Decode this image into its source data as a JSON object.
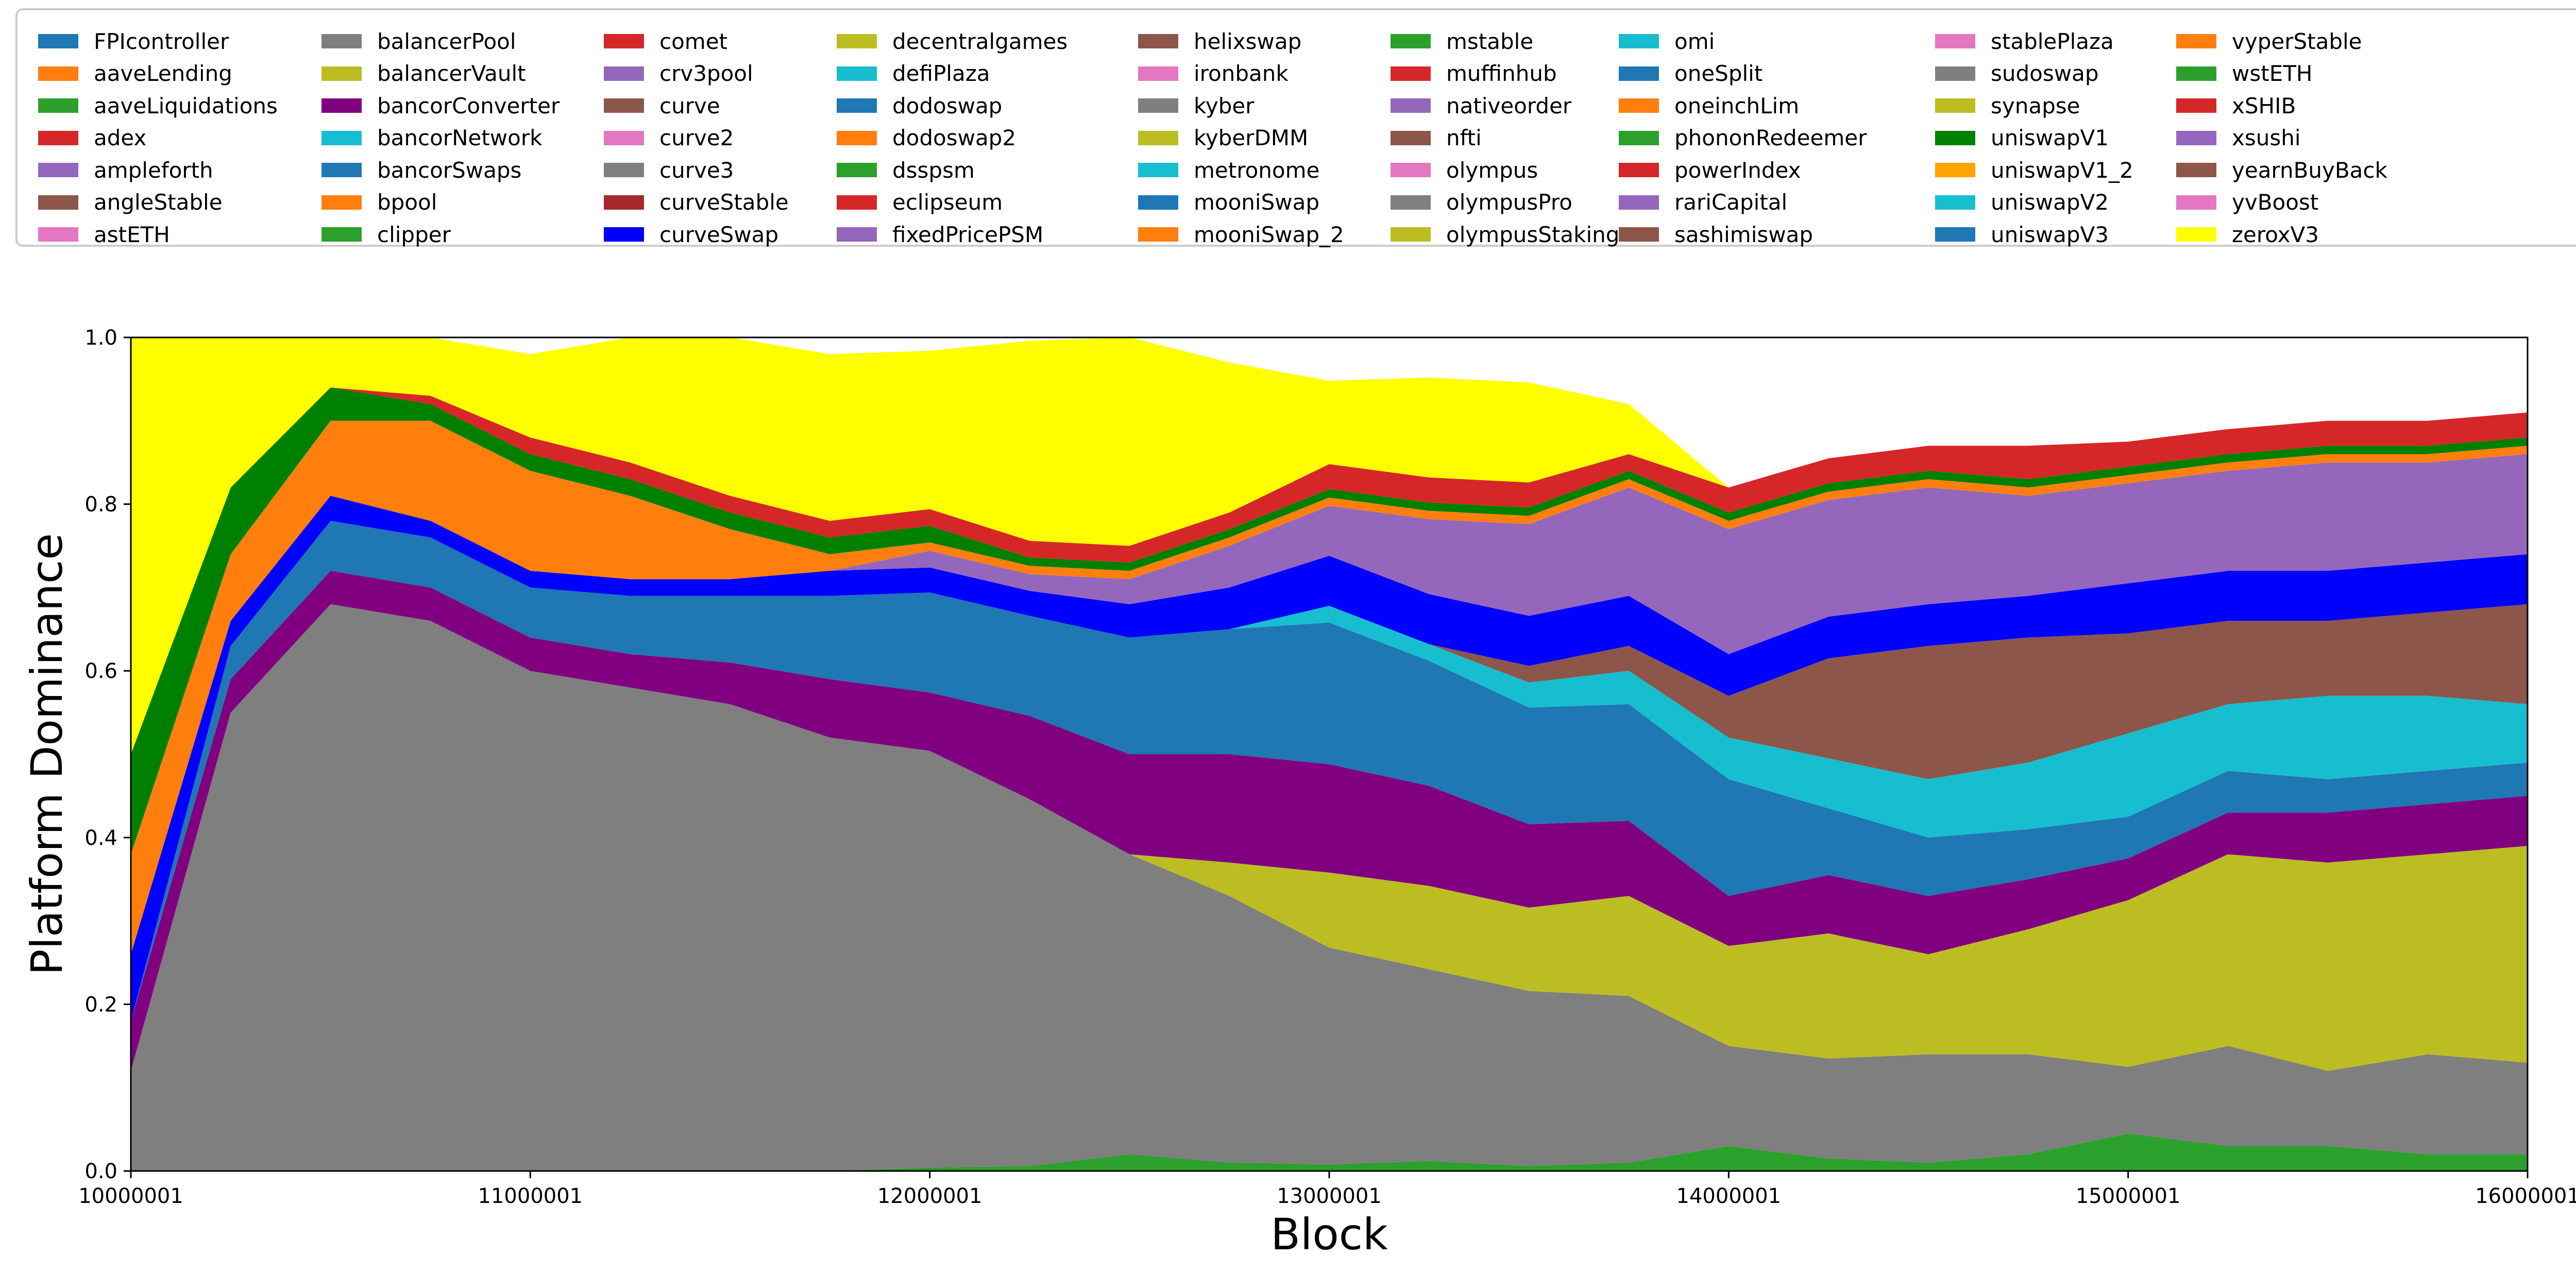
{
  "chart_data": {
    "type": "area",
    "title": "",
    "xlabel": "Block",
    "ylabel": "Platform Dominance",
    "xlim": [
      10000001,
      16000001
    ],
    "ylim": [
      0.0,
      1.0
    ],
    "xticks": [
      "10000001",
      "11000001",
      "12000001",
      "13000001",
      "14000001",
      "15000001",
      "16000001"
    ],
    "yticks": [
      "0.0",
      "0.2",
      "0.4",
      "0.6",
      "0.8",
      "1.0"
    ],
    "legend_position": "top",
    "legend": [
      {
        "name": "FPIcontroller",
        "color": "#1f77b4"
      },
      {
        "name": "aaveLending",
        "color": "#ff7f0e"
      },
      {
        "name": "aaveLiquidations",
        "color": "#2ca02c"
      },
      {
        "name": "adex",
        "color": "#d62728"
      },
      {
        "name": "ampleforth",
        "color": "#9467bd"
      },
      {
        "name": "angleStable",
        "color": "#8c564b"
      },
      {
        "name": "astETH",
        "color": "#e377c2"
      },
      {
        "name": "balancerPool",
        "color": "#7f7f7f"
      },
      {
        "name": "balancerVault",
        "color": "#bcbd22"
      },
      {
        "name": "bancorConverter",
        "color": "#800080"
      },
      {
        "name": "bancorNetwork",
        "color": "#17becf"
      },
      {
        "name": "bancorSwaps",
        "color": "#1f77b4"
      },
      {
        "name": "bpool",
        "color": "#ff7f0e"
      },
      {
        "name": "clipper",
        "color": "#2ca02c"
      },
      {
        "name": "comet",
        "color": "#d62728"
      },
      {
        "name": "crv3pool",
        "color": "#9467bd"
      },
      {
        "name": "curve",
        "color": "#8c564b"
      },
      {
        "name": "curve2",
        "color": "#e377c2"
      },
      {
        "name": "curve3",
        "color": "#7f7f7f"
      },
      {
        "name": "curveStable",
        "color": "#a52a2a"
      },
      {
        "name": "curveSwap",
        "color": "#0000ff"
      },
      {
        "name": "decentralgames",
        "color": "#bcbd22"
      },
      {
        "name": "defiPlaza",
        "color": "#17becf"
      },
      {
        "name": "dodoswap",
        "color": "#1f77b4"
      },
      {
        "name": "dodoswap2",
        "color": "#ff7f0e"
      },
      {
        "name": "dsspsm",
        "color": "#2ca02c"
      },
      {
        "name": "eclipseum",
        "color": "#d62728"
      },
      {
        "name": "fixedPricePSM",
        "color": "#9467bd"
      },
      {
        "name": "helixswap",
        "color": "#8c564b"
      },
      {
        "name": "ironbank",
        "color": "#e377c2"
      },
      {
        "name": "kyber",
        "color": "#7f7f7f"
      },
      {
        "name": "kyberDMM",
        "color": "#bcbd22"
      },
      {
        "name": "metronome",
        "color": "#17becf"
      },
      {
        "name": "mooniSwap",
        "color": "#1f77b4"
      },
      {
        "name": "mooniSwap_2",
        "color": "#ff7f0e"
      },
      {
        "name": "mstable",
        "color": "#2ca02c"
      },
      {
        "name": "muffinhub",
        "color": "#d62728"
      },
      {
        "name": "nativeorder",
        "color": "#9467bd"
      },
      {
        "name": "nfti",
        "color": "#8c564b"
      },
      {
        "name": "olympus",
        "color": "#e377c2"
      },
      {
        "name": "olympusPro",
        "color": "#7f7f7f"
      },
      {
        "name": "olympusStaking",
        "color": "#bcbd22"
      },
      {
        "name": "omi",
        "color": "#17becf"
      },
      {
        "name": "oneSplit",
        "color": "#1f77b4"
      },
      {
        "name": "oneinchLim",
        "color": "#ff7f0e"
      },
      {
        "name": "phononRedeemer",
        "color": "#2ca02c"
      },
      {
        "name": "powerIndex",
        "color": "#d62728"
      },
      {
        "name": "rariCapital",
        "color": "#9467bd"
      },
      {
        "name": "sashimiswap",
        "color": "#8c564b"
      },
      {
        "name": "stablePlaza",
        "color": "#e377c2"
      },
      {
        "name": "sudoswap",
        "color": "#7f7f7f"
      },
      {
        "name": "synapse",
        "color": "#bcbd22"
      },
      {
        "name": "uniswapV1",
        "color": "#008000"
      },
      {
        "name": "uniswapV1_2",
        "color": "#ffa500"
      },
      {
        "name": "uniswapV2",
        "color": "#17becf"
      },
      {
        "name": "uniswapV3",
        "color": "#1f77b4"
      },
      {
        "name": "vyperStable",
        "color": "#ff7f0e"
      },
      {
        "name": "wstETH",
        "color": "#2ca02c"
      },
      {
        "name": "xSHIB",
        "color": "#d62728"
      },
      {
        "name": "xsushi",
        "color": "#9467bd"
      },
      {
        "name": "yearnBuyBack",
        "color": "#8c564b"
      },
      {
        "name": "yvBoost",
        "color": "#e377c2"
      },
      {
        "name": "zeroxV3",
        "color": "#ffff00"
      }
    ],
    "x": [
      10000001,
      10250001,
      10500001,
      10750001,
      11000001,
      11250001,
      11500001,
      11750001,
      12000001,
      12250001,
      12500001,
      12750001,
      13000001,
      13250001,
      13500001,
      13750001,
      14000001,
      14250001,
      14500001,
      14750001,
      15000001,
      15250001,
      15500001,
      15750001,
      16000001
    ],
    "series": [
      {
        "name": "sudoswap+olympus+phononRedeemer",
        "color": "#2ca02c",
        "values": [
          0.0,
          0.0,
          0.0,
          0.0,
          0.0,
          0.0,
          0.0,
          0.0,
          0.004,
          0.006,
          0.02,
          0.01,
          0.008,
          0.012,
          0.006,
          0.01,
          0.03,
          0.015,
          0.01,
          0.02,
          0.045,
          0.03,
          0.03,
          0.02,
          0.02
        ]
      },
      {
        "name": "balancerPool",
        "color": "#7f7f7f",
        "values": [
          0.12,
          0.55,
          0.68,
          0.66,
          0.6,
          0.58,
          0.56,
          0.52,
          0.5,
          0.44,
          0.36,
          0.32,
          0.26,
          0.23,
          0.21,
          0.2,
          0.12,
          0.12,
          0.13,
          0.12,
          0.08,
          0.12,
          0.09,
          0.12,
          0.11
        ]
      },
      {
        "name": "kyberDMM",
        "color": "#bcbd22",
        "values": [
          0.0,
          0.0,
          0.0,
          0.0,
          0.0,
          0.0,
          0.0,
          0.0,
          0.0,
          0.0,
          0.0,
          0.04,
          0.09,
          0.1,
          0.1,
          0.12,
          0.12,
          0.15,
          0.12,
          0.15,
          0.2,
          0.23,
          0.25,
          0.24,
          0.26
        ]
      },
      {
        "name": "bancorConverter",
        "color": "#800080",
        "values": [
          0.06,
          0.04,
          0.04,
          0.04,
          0.04,
          0.04,
          0.05,
          0.07,
          0.07,
          0.1,
          0.12,
          0.13,
          0.13,
          0.12,
          0.1,
          0.09,
          0.06,
          0.07,
          0.07,
          0.06,
          0.05,
          0.05,
          0.06,
          0.06,
          0.06
        ]
      },
      {
        "name": "uniswapV3",
        "color": "#1f77b4",
        "values": [
          0.0,
          0.04,
          0.06,
          0.06,
          0.06,
          0.07,
          0.08,
          0.1,
          0.12,
          0.12,
          0.14,
          0.15,
          0.17,
          0.15,
          0.14,
          0.14,
          0.14,
          0.08,
          0.07,
          0.06,
          0.05,
          0.05,
          0.04,
          0.04,
          0.04
        ]
      },
      {
        "name": "uniswapV2",
        "color": "#17becf",
        "values": [
          0.0,
          0.0,
          0.0,
          0.0,
          0.0,
          0.0,
          0.0,
          0.0,
          0.0,
          0.0,
          0.0,
          0.0,
          0.02,
          0.02,
          0.03,
          0.04,
          0.05,
          0.06,
          0.07,
          0.08,
          0.1,
          0.08,
          0.1,
          0.09,
          0.07
        ]
      },
      {
        "name": "sashimiswap",
        "color": "#8c564b",
        "values": [
          0.0,
          0.0,
          0.0,
          0.0,
          0.0,
          0.0,
          0.0,
          0.0,
          0.0,
          0.0,
          0.0,
          0.0,
          0.0,
          0.0,
          0.02,
          0.03,
          0.05,
          0.12,
          0.16,
          0.15,
          0.12,
          0.1,
          0.09,
          0.1,
          0.12
        ]
      },
      {
        "name": "curveSwap",
        "color": "#0000ff",
        "values": [
          0.08,
          0.03,
          0.03,
          0.02,
          0.02,
          0.02,
          0.02,
          0.03,
          0.03,
          0.03,
          0.04,
          0.05,
          0.06,
          0.06,
          0.06,
          0.06,
          0.05,
          0.05,
          0.05,
          0.05,
          0.06,
          0.06,
          0.06,
          0.06,
          0.06
        ]
      },
      {
        "name": "rariCapital+nativeorder",
        "color": "#9467bd",
        "values": [
          0.0,
          0.0,
          0.0,
          0.0,
          0.0,
          0.0,
          0.0,
          0.0,
          0.02,
          0.02,
          0.03,
          0.05,
          0.06,
          0.09,
          0.11,
          0.13,
          0.15,
          0.14,
          0.14,
          0.12,
          0.12,
          0.12,
          0.13,
          0.12,
          0.12
        ]
      },
      {
        "name": "bpool+dodoswap2",
        "color": "#ff7f0e",
        "values": [
          0.12,
          0.08,
          0.09,
          0.12,
          0.12,
          0.1,
          0.06,
          0.02,
          0.01,
          0.01,
          0.01,
          0.01,
          0.01,
          0.01,
          0.01,
          0.01,
          0.01,
          0.01,
          0.01,
          0.01,
          0.01,
          0.01,
          0.01,
          0.01,
          0.01
        ]
      },
      {
        "name": "uniswapV1",
        "color": "#008000",
        "values": [
          0.12,
          0.08,
          0.04,
          0.02,
          0.02,
          0.02,
          0.02,
          0.02,
          0.02,
          0.01,
          0.01,
          0.01,
          0.01,
          0.01,
          0.01,
          0.01,
          0.01,
          0.01,
          0.01,
          0.01,
          0.01,
          0.01,
          0.01,
          0.01,
          0.01
        ]
      },
      {
        "name": "comet+powerIndex",
        "color": "#d62728",
        "values": [
          0.0,
          0.0,
          0.0,
          0.01,
          0.02,
          0.02,
          0.02,
          0.02,
          0.02,
          0.02,
          0.02,
          0.02,
          0.03,
          0.03,
          0.03,
          0.02,
          0.03,
          0.03,
          0.03,
          0.04,
          0.03,
          0.03,
          0.03,
          0.03,
          0.03
        ]
      },
      {
        "name": "zeroxV3",
        "color": "#ffff00",
        "values": [
          0.5,
          0.18,
          0.06,
          0.07,
          0.1,
          0.15,
          0.19,
          0.2,
          0.19,
          0.24,
          0.25,
          0.18,
          0.1,
          0.12,
          0.12,
          0.06,
          0.0,
          0.0,
          0.0,
          0.0,
          0.0,
          0.0,
          0.0,
          0.0,
          0.0
        ]
      }
    ]
  }
}
